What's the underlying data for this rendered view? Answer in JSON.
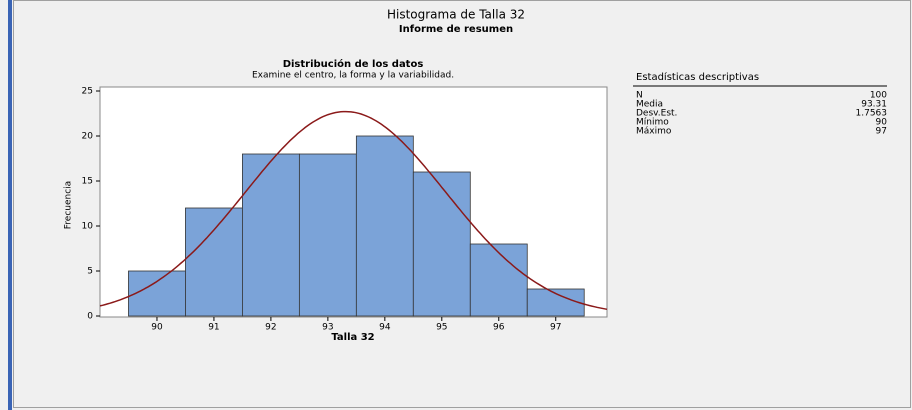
{
  "chart_data": {
    "type": "histogram",
    "title": "Histograma de Talla 32",
    "subtitle": "Informe de resumen",
    "plot_title": "Distribución de los datos",
    "plot_subtitle": "Examine el centro, la forma y la variabilidad.",
    "xlabel": "Talla 32",
    "ylabel": "Frecuencia",
    "bins": [
      89.5,
      90.5,
      91.5,
      92.5,
      93.5,
      94.5,
      95.5,
      96.5,
      97.5
    ],
    "values": [
      5,
      12,
      18,
      18,
      20,
      16,
      8,
      3
    ],
    "color": "#7ba3d8",
    "curve_color": "#8b1a1a",
    "xlim": [
      89,
      97.9
    ],
    "xticks": [
      90,
      91,
      92,
      93,
      94,
      95,
      96,
      97
    ],
    "ylim": [
      0,
      25
    ],
    "yticks": [
      0,
      5,
      10,
      15,
      20,
      25
    ]
  },
  "stats": {
    "title": "Estadísticas descriptivas",
    "rows": [
      [
        "N",
        100
      ],
      [
        "Media",
        93.31
      ],
      [
        "Desv.Est.",
        1.7563
      ],
      [
        "Mínimo",
        90
      ],
      [
        "Máximo",
        97
      ]
    ]
  }
}
